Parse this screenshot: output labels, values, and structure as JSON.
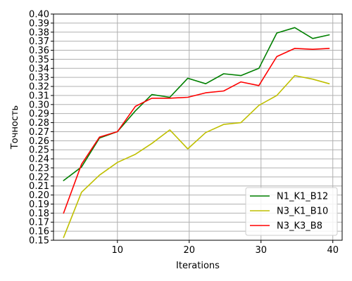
{
  "chart_data": {
    "type": "line",
    "title": "",
    "xlabel": "Iterations",
    "ylabel": "Точность",
    "xlim": [
      1.1,
      41.3
    ],
    "ylim": [
      0.15,
      0.4
    ],
    "xticks": [
      10,
      20,
      30,
      40
    ],
    "yticks": [
      0.15,
      0.16,
      0.17,
      0.18,
      0.19,
      0.2,
      0.21,
      0.22,
      0.23,
      0.24,
      0.25,
      0.26,
      0.27,
      0.28,
      0.29,
      0.3,
      0.31,
      0.32,
      0.33,
      0.34,
      0.35,
      0.36,
      0.37,
      0.38,
      0.39,
      0.4
    ],
    "ytick_labels": [
      "0.15",
      "0.16",
      "0.17",
      "0.18",
      "0.19",
      "0.20",
      "0.21",
      "0.22",
      "0.23",
      "0.24",
      "0.25",
      "0.26",
      "0.27",
      "0.28",
      "0.29",
      "0.30",
      "0.31",
      "0.32",
      "0.33",
      "0.34",
      "0.35",
      "0.36",
      "0.37",
      "0.38",
      "0.39",
      "0.40"
    ],
    "grid": true,
    "legend_position": "bottom-right",
    "series": [
      {
        "name": "N1_K1_B12",
        "color": "#008000",
        "x": [
          2.5,
          5.0,
          7.5,
          10.0,
          12.5,
          14.8,
          17.3,
          19.8,
          22.3,
          24.8,
          27.2,
          29.7,
          32.2,
          34.7,
          37.2,
          39.5
        ],
        "y": [
          0.216,
          0.231,
          0.263,
          0.27,
          0.293,
          0.311,
          0.308,
          0.329,
          0.323,
          0.334,
          0.332,
          0.34,
          0.379,
          0.385,
          0.373,
          0.377
        ]
      },
      {
        "name": "N3_K1_B10",
        "color": "#bfbf00",
        "x": [
          2.5,
          5.0,
          7.5,
          10.0,
          12.5,
          14.8,
          17.3,
          19.8,
          22.3,
          24.8,
          27.2,
          29.7,
          32.2,
          34.7,
          37.2,
          39.5
        ],
        "y": [
          0.153,
          0.203,
          0.222,
          0.236,
          0.245,
          0.257,
          0.272,
          0.251,
          0.269,
          0.278,
          0.28,
          0.299,
          0.31,
          0.332,
          0.328,
          0.323
        ]
      },
      {
        "name": "N3_K3_B8",
        "color": "#ff0000",
        "x": [
          2.5,
          5.0,
          7.5,
          10.0,
          12.5,
          14.8,
          17.3,
          19.8,
          22.3,
          24.8,
          27.2,
          29.7,
          32.2,
          34.7,
          37.2,
          39.5
        ],
        "y": [
          0.18,
          0.234,
          0.264,
          0.27,
          0.298,
          0.307,
          0.307,
          0.308,
          0.313,
          0.315,
          0.325,
          0.321,
          0.353,
          0.362,
          0.361,
          0.362
        ]
      }
    ]
  }
}
